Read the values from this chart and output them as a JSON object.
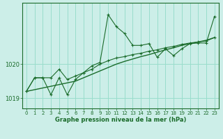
{
  "xlabel": "Graphe pression niveau de la mer (hPa)",
  "background_color": "#cceee8",
  "plot_bg_color": "#cceee8",
  "grid_color": "#99ddcc",
  "line_color": "#1a6b2a",
  "ylim": [
    1018.7,
    1021.8
  ],
  "yticks": [
    1019,
    1020
  ],
  "xlim": [
    -0.5,
    23.5
  ],
  "x_ticks": [
    0,
    1,
    2,
    3,
    4,
    5,
    6,
    7,
    8,
    9,
    10,
    11,
    12,
    13,
    14,
    15,
    16,
    17,
    18,
    19,
    20,
    21,
    22,
    23
  ],
  "series1_y": [
    1019.2,
    1019.25,
    1019.3,
    1019.35,
    1019.4,
    1019.45,
    1019.5,
    1019.6,
    1019.7,
    1019.8,
    1019.9,
    1020.0,
    1020.08,
    1020.15,
    1020.22,
    1020.28,
    1020.35,
    1020.42,
    1020.48,
    1020.55,
    1020.6,
    1020.65,
    1020.7,
    1020.78
  ],
  "series2_y": [
    1019.2,
    1019.6,
    1019.6,
    1019.6,
    1019.85,
    1019.55,
    1019.65,
    1019.75,
    1019.85,
    1020.0,
    1020.1,
    1020.18,
    1020.22,
    1020.28,
    1020.32,
    1020.38,
    1020.42,
    1020.48,
    1020.52,
    1020.58,
    1020.62,
    1020.65,
    1020.68,
    1020.78
  ],
  "series3_y": [
    1019.2,
    1019.6,
    1019.6,
    1019.1,
    1019.6,
    1019.1,
    1019.55,
    1019.75,
    1019.95,
    1020.05,
    1021.45,
    1021.1,
    1020.9,
    1020.55,
    1020.55,
    1020.6,
    1020.2,
    1020.45,
    1020.25,
    1020.45,
    1020.6,
    1020.62,
    1020.62,
    1021.4
  ],
  "xlabel_fontsize": 6.0,
  "xtick_fontsize": 5.0,
  "ytick_fontsize": 6.0
}
